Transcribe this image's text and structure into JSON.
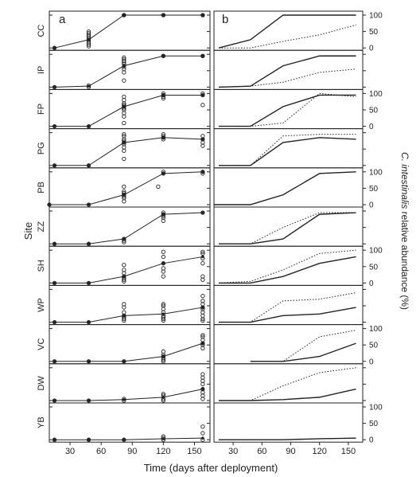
{
  "figure": {
    "ylabel_left": "Site",
    "ylabel_right_italic": "C. intestinalis",
    "ylabel_right_rest": " relative abundance (%)",
    "xlabel": "Time (days after deployment)",
    "panel_a_letter": "a",
    "panel_b_letter": "b"
  },
  "chart_data": {
    "type": "line",
    "xlim": [
      10,
      165
    ],
    "ylim": [
      0,
      100
    ],
    "x_ticks": [
      30,
      60,
      90,
      120,
      150
    ],
    "y_ticks": [
      0,
      50,
      100
    ],
    "sites": [
      {
        "label": "CC",
        "mean": {
          "x": [
            15,
            48,
            82,
            120,
            158
          ],
          "y": [
            0,
            25,
            100,
            100,
            100
          ]
        },
        "points": {
          "x": [
            15,
            48,
            48,
            48,
            48,
            48,
            48,
            48,
            48,
            48,
            48,
            82,
            82,
            82,
            120,
            120,
            158,
            158
          ],
          "y": [
            0,
            5,
            10,
            15,
            20,
            25,
            30,
            35,
            40,
            45,
            50,
            100,
            100,
            100,
            100,
            100,
            100,
            100
          ]
        },
        "b_solid": {
          "x": [
            15,
            48,
            82,
            120,
            158
          ],
          "y": [
            0,
            25,
            100,
            100,
            100
          ]
        },
        "b_dotted": {
          "x": [
            15,
            48,
            82,
            120,
            158
          ],
          "y": [
            0,
            0,
            20,
            40,
            70
          ]
        }
      },
      {
        "label": "IP",
        "mean": {
          "x": [
            15,
            48,
            82,
            120,
            158
          ],
          "y": [
            0,
            3,
            65,
            95,
            95
          ]
        },
        "points": {
          "x": [
            15,
            48,
            48,
            82,
            82,
            82,
            82,
            82,
            82,
            82,
            82,
            82,
            120,
            120,
            158,
            158
          ],
          "y": [
            0,
            0,
            5,
            20,
            45,
            55,
            62,
            70,
            75,
            80,
            85,
            90,
            95,
            95,
            95,
            95
          ]
        },
        "b_solid": {
          "x": [
            15,
            48,
            82,
            120,
            158
          ],
          "y": [
            0,
            3,
            65,
            95,
            95
          ]
        },
        "b_dotted": {
          "x": [
            15,
            48,
            82,
            120,
            158
          ],
          "y": [
            0,
            3,
            15,
            45,
            55
          ]
        }
      },
      {
        "label": "FP",
        "mean": {
          "x": [
            15,
            48,
            82,
            120,
            158
          ],
          "y": [
            0,
            0,
            60,
            95,
            95
          ]
        },
        "points": {
          "x": [
            15,
            48,
            82,
            82,
            82,
            82,
            82,
            82,
            82,
            82,
            82,
            82,
            120,
            120,
            120,
            120,
            158,
            158,
            158
          ],
          "y": [
            0,
            0,
            10,
            30,
            40,
            50,
            55,
            60,
            65,
            70,
            80,
            90,
            85,
            90,
            95,
            100,
            65,
            95,
            100
          ]
        },
        "b_solid": {
          "x": [
            15,
            48,
            82,
            120,
            158
          ],
          "y": [
            0,
            0,
            60,
            95,
            95
          ]
        },
        "b_dotted": {
          "x": [
            15,
            48,
            82,
            120,
            158
          ],
          "y": [
            0,
            0,
            10,
            100,
            90
          ]
        }
      },
      {
        "label": "PG",
        "mean": {
          "x": [
            15,
            48,
            82,
            120,
            158
          ],
          "y": [
            0,
            0,
            70,
            85,
            80
          ]
        },
        "points": {
          "x": [
            15,
            48,
            82,
            82,
            82,
            82,
            82,
            82,
            82,
            82,
            82,
            120,
            120,
            120,
            120,
            158,
            158,
            158,
            158
          ],
          "y": [
            0,
            0,
            20,
            45,
            55,
            65,
            70,
            75,
            80,
            90,
            95,
            80,
            85,
            90,
            95,
            60,
            70,
            80,
            90
          ]
        },
        "b_solid": {
          "x": [
            15,
            48,
            82,
            120,
            158
          ],
          "y": [
            0,
            0,
            70,
            85,
            80
          ]
        },
        "b_dotted": {
          "x": [
            15,
            48,
            82,
            120,
            158
          ],
          "y": [
            0,
            0,
            90,
            95,
            95
          ]
        }
      },
      {
        "label": "PB",
        "mean": {
          "x": [
            10,
            48,
            82,
            120,
            158
          ],
          "y": [
            0,
            0,
            30,
            95,
            100
          ]
        },
        "points": {
          "x": [
            10,
            48,
            82,
            82,
            82,
            82,
            82,
            82,
            82,
            115,
            120,
            120,
            158,
            158
          ],
          "y": [
            0,
            0,
            10,
            20,
            25,
            30,
            35,
            40,
            55,
            55,
            95,
            100,
            95,
            100
          ]
        },
        "b_solid": {
          "x": [
            10,
            48,
            82,
            120,
            158
          ],
          "y": [
            0,
            0,
            30,
            95,
            100
          ]
        },
        "b_dotted": {
          "x": [
            10,
            48,
            82,
            120,
            158
          ],
          "y": [
            0,
            0,
            30,
            95,
            100
          ]
        }
      },
      {
        "label": "ZZ",
        "mean": {
          "x": [
            15,
            48,
            82,
            120,
            158
          ],
          "y": [
            0,
            0,
            15,
            90,
            95
          ]
        },
        "points": {
          "x": [
            15,
            48,
            82,
            82,
            82,
            120,
            120,
            120,
            120,
            120,
            158
          ],
          "y": [
            0,
            0,
            5,
            10,
            15,
            70,
            80,
            85,
            90,
            95,
            95
          ]
        },
        "b_solid": {
          "x": [
            15,
            48,
            82,
            120,
            158
          ],
          "y": [
            0,
            0,
            15,
            90,
            95
          ]
        },
        "b_dotted": {
          "x": [
            15,
            48,
            82,
            120,
            158
          ],
          "y": [
            0,
            0,
            50,
            95,
            95
          ]
        }
      },
      {
        "label": "SH",
        "mean": {
          "x": [
            15,
            48,
            82,
            120,
            158
          ],
          "y": [
            0,
            0,
            20,
            60,
            80
          ]
        },
        "points": {
          "x": [
            15,
            48,
            82,
            82,
            82,
            82,
            82,
            82,
            82,
            120,
            120,
            120,
            120,
            120,
            120,
            158,
            158,
            158,
            158,
            158,
            158
          ],
          "y": [
            0,
            0,
            5,
            10,
            15,
            20,
            30,
            40,
            55,
            20,
            35,
            45,
            60,
            80,
            95,
            10,
            20,
            60,
            75,
            90,
            95
          ]
        },
        "b_solid": {
          "x": [
            15,
            48,
            82,
            120,
            158
          ],
          "y": [
            0,
            0,
            20,
            60,
            80
          ]
        },
        "b_dotted": {
          "x": [
            15,
            48,
            82,
            120,
            158
          ],
          "y": [
            0,
            5,
            40,
            90,
            100
          ]
        }
      },
      {
        "label": "WP",
        "mean": {
          "x": [
            15,
            48,
            82,
            120,
            158
          ],
          "y": [
            0,
            0,
            20,
            25,
            45
          ]
        },
        "points": {
          "x": [
            15,
            48,
            82,
            82,
            82,
            82,
            82,
            82,
            82,
            120,
            120,
            120,
            120,
            120,
            120,
            120,
            120,
            158,
            158,
            158,
            158,
            158,
            158,
            158,
            158,
            158
          ],
          "y": [
            0,
            0,
            5,
            10,
            15,
            20,
            30,
            45,
            55,
            5,
            10,
            15,
            20,
            30,
            40,
            50,
            55,
            5,
            10,
            20,
            30,
            40,
            45,
            55,
            65,
            80
          ]
        },
        "b_solid": {
          "x": [
            15,
            48,
            82,
            120,
            158
          ],
          "y": [
            0,
            0,
            20,
            25,
            45
          ]
        },
        "b_dotted": {
          "x": [
            15,
            48,
            82,
            120,
            158
          ],
          "y": [
            0,
            0,
            65,
            70,
            90
          ]
        }
      },
      {
        "label": "VC",
        "mean": {
          "x": [
            15,
            48,
            82,
            120,
            158
          ],
          "y": [
            0,
            0,
            0,
            15,
            55
          ]
        },
        "points": {
          "x": [
            15,
            48,
            82,
            120,
            120,
            120,
            120,
            120,
            120,
            158,
            158,
            158,
            158,
            158,
            158
          ],
          "y": [
            0,
            0,
            0,
            0,
            5,
            10,
            15,
            20,
            30,
            40,
            50,
            55,
            65,
            75,
            80
          ]
        },
        "b_solid": {
          "x": [
            48,
            82,
            120,
            158
          ],
          "y": [
            0,
            0,
            15,
            55
          ]
        },
        "b_dotted": {
          "x": [
            48,
            82,
            120,
            158
          ],
          "y": [
            0,
            0,
            75,
            95
          ]
        }
      },
      {
        "label": "DW",
        "mean": {
          "x": [
            15,
            48,
            82,
            120,
            158
          ],
          "y": [
            0,
            0,
            3,
            10,
            35
          ]
        },
        "points": {
          "x": [
            15,
            48,
            82,
            82,
            120,
            120,
            120,
            120,
            158,
            158,
            158,
            158,
            158,
            158,
            158,
            158
          ],
          "y": [
            0,
            0,
            0,
            5,
            0,
            5,
            15,
            20,
            5,
            15,
            25,
            35,
            50,
            60,
            70,
            80
          ]
        },
        "b_solid": {
          "x": [
            15,
            48,
            82,
            120,
            158
          ],
          "y": [
            0,
            0,
            3,
            10,
            35
          ]
        },
        "b_dotted": {
          "x": [
            15,
            48,
            82,
            120,
            158
          ],
          "y": [
            0,
            0,
            45,
            85,
            100
          ]
        }
      },
      {
        "label": "YB",
        "mean": {
          "x": [
            15,
            48,
            82,
            120,
            158
          ],
          "y": [
            0,
            0,
            0,
            3,
            5
          ]
        },
        "points": {
          "x": [
            15,
            48,
            82,
            120,
            120,
            120,
            158,
            158,
            158
          ],
          "y": [
            0,
            0,
            0,
            0,
            5,
            10,
            0,
            20,
            40
          ]
        },
        "b_solid": {
          "x": [
            15,
            48,
            82,
            120,
            158
          ],
          "y": [
            0,
            0,
            0,
            3,
            5
          ]
        },
        "b_dotted": {
          "x": [
            15,
            48,
            82,
            120,
            158
          ],
          "y": [
            0,
            0,
            0,
            3,
            5
          ]
        }
      }
    ]
  }
}
